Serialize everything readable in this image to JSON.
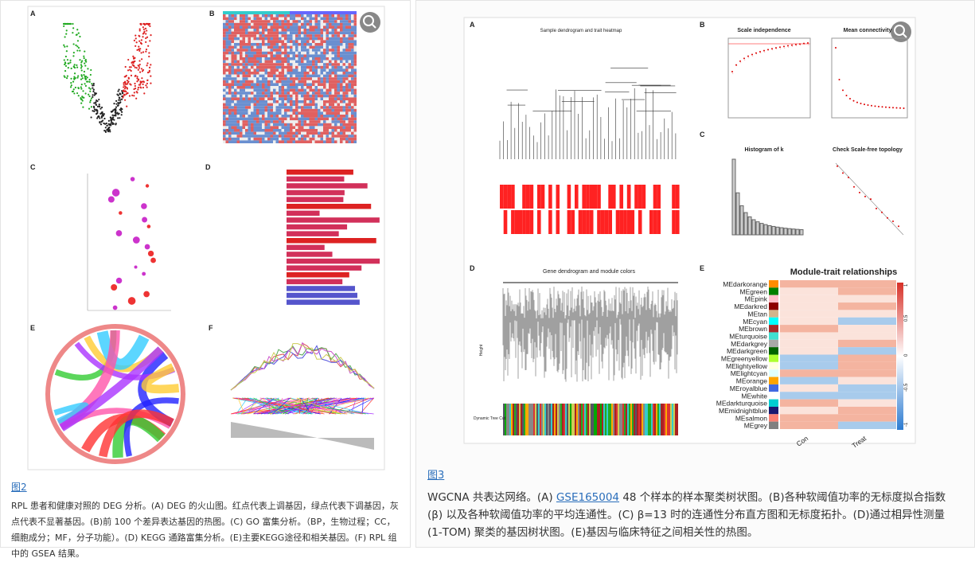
{
  "figure2": {
    "link": "图2",
    "caption": "RPL 患者和健康对照的 DEG 分析。(A) DEG 的火山图。红点代表上调基因，绿点代表下调基因，灰点代表不显著基因。(B)前 100 个差异表达基因的热图。(C) GO 富集分析。（BP，生物过程；CC，细胞成分；MF，分子功能）。(D) KEGG 通路富集分析。(E)主要KEGG途径和相关基因。(F) RPL 组中的 GSEA 结果。",
    "panel_labels": [
      "A",
      "B",
      "C",
      "D",
      "E",
      "F"
    ]
  },
  "figure3": {
    "link": "图3",
    "caption_start": "WGCNA 共表达网络。(A) ",
    "accession": "GSE165004",
    "caption_end": " 48 个样本的样本聚类树状图。(B)各种软阈值功率的无标度拟合指数 (β) 以及各种软阈值功率的平均连通性。(C) β=13 时的连通性分布直方图和无标度拓扑。(D)通过相异性测量 (1-TOM) 聚类的基因树状图。(E)基因与临床特征之间相关性的热图。",
    "panel_labels": [
      "A",
      "B",
      "C",
      "D",
      "E"
    ],
    "titles": {
      "dendrogram": "Sample dendrogram and trait heatmap",
      "scale": "Scale independence",
      "connectivity": "Mean connectivity",
      "histogram": "Histogram of k",
      "scale_free": "Check Scale-free topology",
      "gene_tree": "Gene dendrogram and module colors",
      "module_trait": "Module-trait relationships"
    },
    "axis_labels": {
      "height": "Height",
      "tree_cut": "Dynamic Tree Cut"
    },
    "modules": [
      "MEdarkorange",
      "MEgreen",
      "MEpink",
      "MEdarkred",
      "MEtan",
      "MEcyan",
      "MEbrown",
      "MEturquoise",
      "MEdarkgrey",
      "MEdarkgreen",
      "MEgreenyellow",
      "MElightyellow",
      "MElightcyan",
      "MEorange",
      "MEroyalblue",
      "MEwhite",
      "MEdarkturquoise",
      "MEmidnightblue",
      "MEsalmon",
      "MEgrey"
    ],
    "traits": [
      "Con",
      "Treat"
    ],
    "legend_ticks": [
      "1",
      "0.5",
      "0",
      "-0.5",
      "-1"
    ]
  }
}
